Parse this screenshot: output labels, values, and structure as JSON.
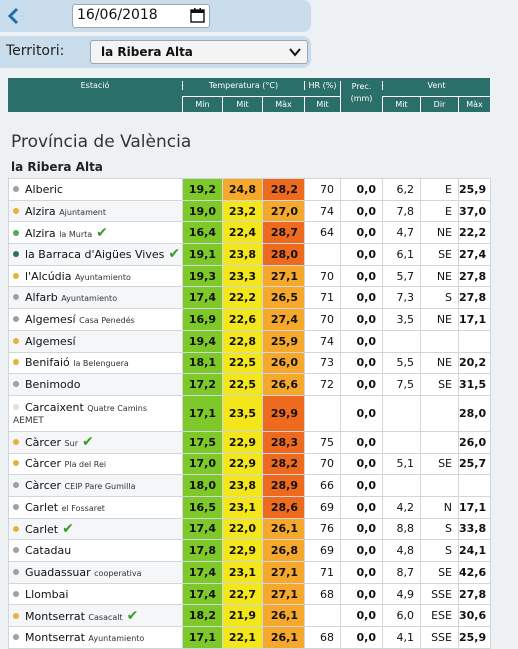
{
  "date": "16/06/2018",
  "territori_label": "Territori:",
  "territori_value": "la Ribera Alta",
  "headers": {
    "estacio": "Estació",
    "temp": "Temperatura (°C)",
    "hr": "HR (%)",
    "prec": "Prec. (mm)",
    "vent": "Vent",
    "min": "Mín",
    "mit": "Mit",
    "max": "Màx"
  },
  "section": "Província de València",
  "subregion": "la Ribera Alta",
  "colors": {
    "header": "#2b6f6a",
    "green": "#7ec82a",
    "yellow": "#f3e61a",
    "orange": "#f6a82d",
    "dark_orange": "#ee6a1f",
    "check": "#3a9a2a"
  },
  "rows": [
    {
      "name": "Alberic",
      "sub": "",
      "dot": "#a0a0a0",
      "check": false,
      "min": "19,2",
      "mit": "24,8",
      "max": "28,2",
      "mitc": "#f6a82d",
      "maxc": "#ee6a1f",
      "hr": "70",
      "prec": "0,0",
      "vmit": "6,2",
      "vdir": "E",
      "vmax": "25,9"
    },
    {
      "name": "Alzira",
      "sub": "Ajuntament",
      "dot": "#e8b23a",
      "check": false,
      "min": "19,0",
      "mit": "23,2",
      "max": "27,0",
      "mitc": "#f3e61a",
      "maxc": "#f6a82d",
      "hr": "74",
      "prec": "0,0",
      "vmit": "7,8",
      "vdir": "E",
      "vmax": "37,0"
    },
    {
      "name": "Alzira",
      "sub": "la Murta",
      "dot": "#4caf50",
      "check": true,
      "min": "16,4",
      "mit": "22,4",
      "max": "28,7",
      "mitc": "#f3e61a",
      "maxc": "#ee6a1f",
      "hr": "64",
      "prec": "0,0",
      "vmit": "4,7",
      "vdir": "NE",
      "vmax": "22,2"
    },
    {
      "name": "la Barraca d'Aigües Vives",
      "sub": "",
      "dot": "#2b6f6a",
      "check": true,
      "min": "19,1",
      "mit": "23,8",
      "max": "28,0",
      "mitc": "#f3e61a",
      "maxc": "#ee6a1f",
      "hr": "",
      "prec": "0,0",
      "vmit": "6,1",
      "vdir": "SE",
      "vmax": "27,4"
    },
    {
      "name": "l'Alcúdia",
      "sub": "Ayuntamiento",
      "dot": "#e8b23a",
      "check": false,
      "min": "19,3",
      "mit": "23,3",
      "max": "27,1",
      "mitc": "#f3e61a",
      "maxc": "#f6a82d",
      "hr": "70",
      "prec": "0,0",
      "vmit": "5,7",
      "vdir": "NE",
      "vmax": "27,8"
    },
    {
      "name": "Alfarb",
      "sub": "Ayuntamiento",
      "dot": "#a0a0a0",
      "check": false,
      "min": "17,4",
      "mit": "22,2",
      "max": "26,5",
      "mitc": "#f3e61a",
      "maxc": "#f6a82d",
      "hr": "71",
      "prec": "0,0",
      "vmit": "7,3",
      "vdir": "S",
      "vmax": "27,8"
    },
    {
      "name": "Algemesí",
      "sub": "Casa Penedés",
      "dot": "#a0a0a0",
      "check": false,
      "min": "16,9",
      "mit": "22,6",
      "max": "27,4",
      "mitc": "#f3e61a",
      "maxc": "#f6a82d",
      "hr": "70",
      "prec": "0,0",
      "vmit": "3,5",
      "vdir": "NE",
      "vmax": "17,1"
    },
    {
      "name": "Algemesí",
      "sub": "",
      "dot": "#e8b23a",
      "check": false,
      "min": "19,4",
      "mit": "22,8",
      "max": "25,9",
      "mitc": "#f3e61a",
      "maxc": "#f6a82d",
      "hr": "74",
      "prec": "0,0",
      "vmit": "",
      "vdir": "",
      "vmax": ""
    },
    {
      "name": "Benifaió",
      "sub": "la Belenguera",
      "dot": "#e8b23a",
      "check": false,
      "min": "18,1",
      "mit": "22,5",
      "max": "26,0",
      "mitc": "#f3e61a",
      "maxc": "#f6a82d",
      "hr": "73",
      "prec": "0,0",
      "vmit": "5,5",
      "vdir": "NE",
      "vmax": "20,2"
    },
    {
      "name": "Benimodo",
      "sub": "",
      "dot": "#a0a0a0",
      "check": false,
      "min": "17,2",
      "mit": "22,5",
      "max": "26,6",
      "mitc": "#f3e61a",
      "maxc": "#f6a82d",
      "hr": "72",
      "prec": "0,0",
      "vmit": "7,5",
      "vdir": "SE",
      "vmax": "31,5"
    },
    {
      "name": "Carcaixent",
      "sub": "Quatre Camins",
      "aemet": "AEMET",
      "dot": "#e0e0e0",
      "check": false,
      "tall": true,
      "min": "17,1",
      "mit": "23,5",
      "max": "29,9",
      "mitc": "#f3e61a",
      "maxc": "#ee6a1f",
      "hr": "",
      "prec": "0,0",
      "vmit": "",
      "vdir": "",
      "vmax": "28,0"
    },
    {
      "name": "Càrcer",
      "sub": "Sur",
      "dot": "#e8b23a",
      "check": true,
      "min": "17,5",
      "mit": "22,9",
      "max": "28,3",
      "mitc": "#f3e61a",
      "maxc": "#ee6a1f",
      "hr": "75",
      "prec": "0,0",
      "vmit": "",
      "vdir": "",
      "vmax": "26,0"
    },
    {
      "name": "Càrcer",
      "sub": "Pla del Rei",
      "dot": "#e8b23a",
      "check": false,
      "min": "17,0",
      "mit": "22,9",
      "max": "28,2",
      "mitc": "#f3e61a",
      "maxc": "#ee6a1f",
      "hr": "70",
      "prec": "0,0",
      "vmit": "5,1",
      "vdir": "SE",
      "vmax": "25,7"
    },
    {
      "name": "Càrcer",
      "sub": "CEIP Pare Gumilla",
      "dot": "#a0a0a0",
      "check": false,
      "min": "18,0",
      "mit": "23,8",
      "max": "28,9",
      "mitc": "#f3e61a",
      "maxc": "#ee6a1f",
      "hr": "66",
      "prec": "0,0",
      "vmit": "",
      "vdir": "",
      "vmax": ""
    },
    {
      "name": "Carlet",
      "sub": "el Fossaret",
      "dot": "#a0a0a0",
      "check": false,
      "min": "16,5",
      "mit": "23,1",
      "max": "28,6",
      "mitc": "#f3e61a",
      "maxc": "#ee6a1f",
      "hr": "69",
      "prec": "0,0",
      "vmit": "4,2",
      "vdir": "N",
      "vmax": "17,1"
    },
    {
      "name": "Carlet",
      "sub": "",
      "dot": "#e8b23a",
      "check": true,
      "min": "17,4",
      "mit": "22,0",
      "max": "26,1",
      "mitc": "#f3e61a",
      "maxc": "#f6a82d",
      "hr": "76",
      "prec": "0,0",
      "vmit": "8,8",
      "vdir": "S",
      "vmax": "33,8"
    },
    {
      "name": "Catadau",
      "sub": "",
      "dot": "#a0a0a0",
      "check": false,
      "min": "17,8",
      "mit": "22,9",
      "max": "26,8",
      "mitc": "#f3e61a",
      "maxc": "#f6a82d",
      "hr": "69",
      "prec": "0,0",
      "vmit": "4,8",
      "vdir": "S",
      "vmax": "24,1"
    },
    {
      "name": "Guadassuar",
      "sub": "cooperativa",
      "dot": "#a0a0a0",
      "check": false,
      "min": "17,4",
      "mit": "23,1",
      "max": "27,1",
      "mitc": "#f3e61a",
      "maxc": "#f6a82d",
      "hr": "71",
      "prec": "0,0",
      "vmit": "8,7",
      "vdir": "SE",
      "vmax": "42,6"
    },
    {
      "name": "Llombai",
      "sub": "",
      "dot": "#a0a0a0",
      "check": false,
      "min": "17,4",
      "mit": "22,7",
      "max": "27,1",
      "mitc": "#f3e61a",
      "maxc": "#f6a82d",
      "hr": "68",
      "prec": "0,0",
      "vmit": "4,9",
      "vdir": "SSE",
      "vmax": "27,8"
    },
    {
      "name": "Montserrat",
      "sub": "Casacalt",
      "dot": "#e8b23a",
      "check": true,
      "min": "18,2",
      "mit": "21,9",
      "max": "26,1",
      "mitc": "#f3e61a",
      "maxc": "#f6a82d",
      "hr": "",
      "prec": "0,0",
      "vmit": "6,0",
      "vdir": "ESE",
      "vmax": "30,6"
    },
    {
      "name": "Montserrat",
      "sub": "Ayuntamiento",
      "dot": "#a0a0a0",
      "check": false,
      "min": "17,1",
      "mit": "22,1",
      "max": "26,1",
      "mitc": "#f3e61a",
      "maxc": "#f6a82d",
      "hr": "68",
      "prec": "0,0",
      "vmit": "4,1",
      "vdir": "SSE",
      "vmax": "25,9"
    }
  ]
}
